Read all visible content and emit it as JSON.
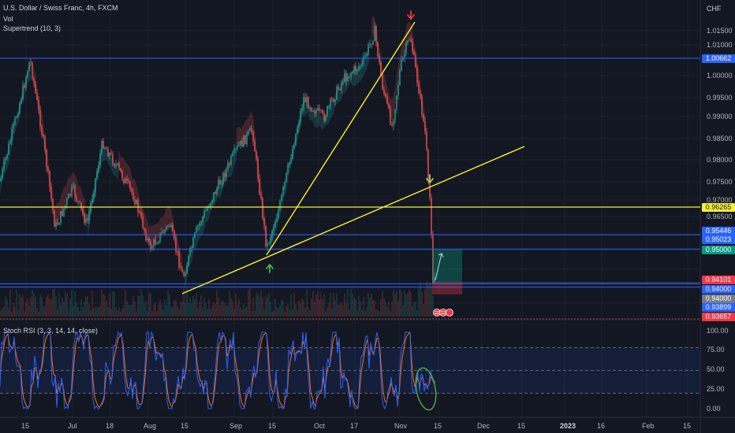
{
  "legend": {
    "symbol": "U.S. Dollar / Swiss Franc, 4h, FXCM",
    "vol": "Vol",
    "supertrend": "Supertrend (10, 3)",
    "stoch": "Stoch RSI (3, 3, 14, 14, close)"
  },
  "price_axis": {
    "currency": "CHF",
    "ticks": [
      "1.01500",
      "1.01000",
      "1.00500",
      "1.00000",
      "0.99500",
      "0.99000",
      "0.98500",
      "0.98000",
      "0.97500",
      "0.97000",
      "0.96500",
      "0.96000",
      "0.94000"
    ],
    "tags": [
      {
        "label": "1.00662",
        "color": "#2962ff"
      },
      {
        "label": "0.96265",
        "color": "#f7f035",
        "text": "#131722"
      },
      {
        "label": "0.95446",
        "color": "#2962ff"
      },
      {
        "label": "0.95023",
        "color": "#2962ff"
      },
      {
        "label": "0.95000",
        "color": "#089981"
      },
      {
        "label": "0.94101",
        "color": "#f23645"
      },
      {
        "label": "0.94000",
        "color": "#2962ff"
      },
      {
        "label": "0.94000",
        "color": "#787b86"
      },
      {
        "label": "0.93899",
        "color": "#2962ff"
      },
      {
        "label": "0.93657",
        "color": "#f23645"
      }
    ]
  },
  "stoch_axis": {
    "ticks": [
      "100.00",
      "75.00",
      "50.00",
      "25.00",
      "0.00"
    ]
  },
  "time_axis": [
    {
      "label": "15"
    },
    {
      "label": "Jul"
    },
    {
      "label": "18"
    },
    {
      "label": "Aug"
    },
    {
      "label": "15"
    },
    {
      "label": "Sep"
    },
    {
      "label": "15"
    },
    {
      "label": "Oct"
    },
    {
      "label": "17"
    },
    {
      "label": "Nov"
    },
    {
      "label": "15"
    },
    {
      "label": "Dec"
    },
    {
      "label": "15"
    },
    {
      "label": "2023",
      "bold": true
    },
    {
      "label": "16"
    },
    {
      "label": "Feb"
    },
    {
      "label": "15"
    }
  ],
  "colors": {
    "up": "#26a69a",
    "down": "#ef5350",
    "trendline": "#f7f035",
    "hline": "#2962ff",
    "stoch_k": "#2962ff",
    "stoch_d": "#ff6d00"
  }
}
